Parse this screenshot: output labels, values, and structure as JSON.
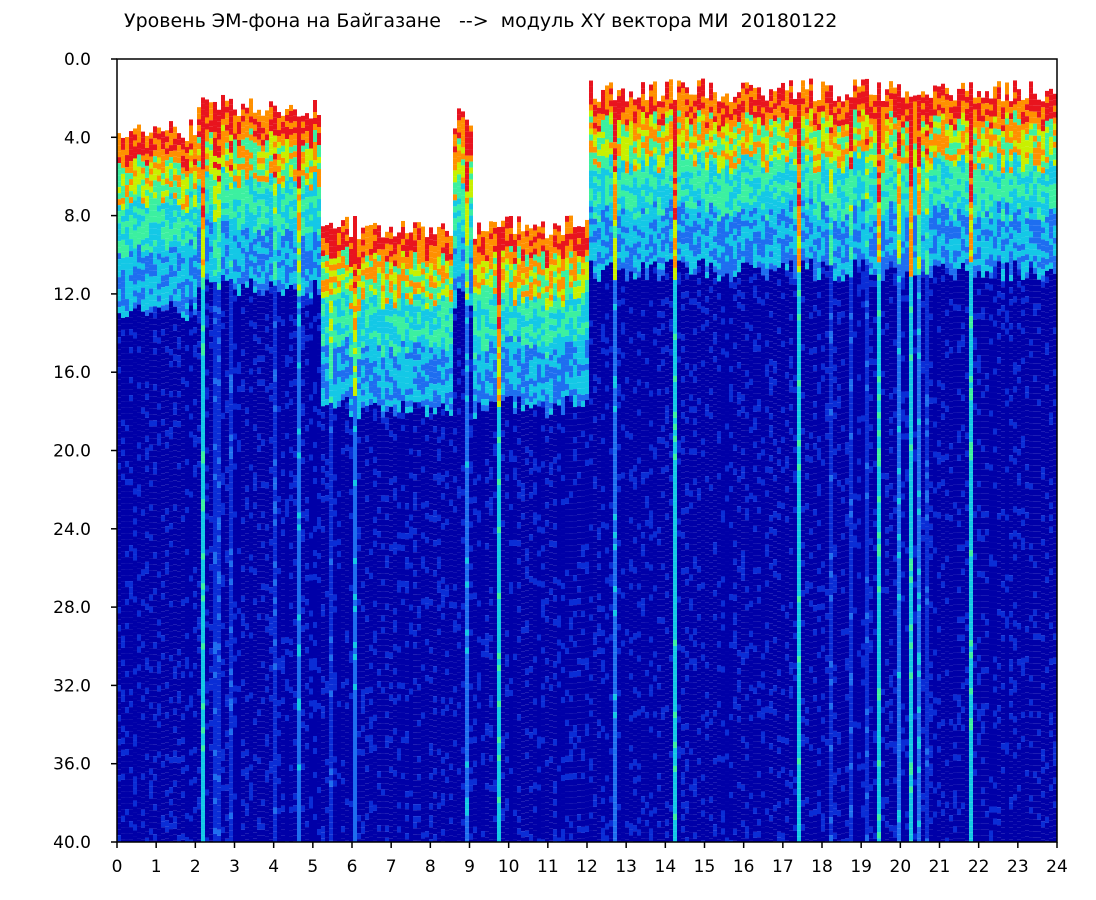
{
  "chart_data": {
    "type": "heatmap",
    "title": "Уровень ЭМ-фона на Байгазане   -->  модуль XY вектора МИ  20180122",
    "xlabel": "",
    "ylabel": "",
    "xlim": [
      0,
      24
    ],
    "ylim": [
      0,
      40
    ],
    "y_inverted": true,
    "x_ticks": [
      "0",
      "1",
      "2",
      "3",
      "4",
      "5",
      "6",
      "7",
      "8",
      "9",
      "10",
      "11",
      "12",
      "13",
      "14",
      "15",
      "16",
      "17",
      "18",
      "19",
      "20",
      "21",
      "22",
      "23",
      "24"
    ],
    "y_ticks": [
      "0.0",
      "4.0",
      "8.0",
      "12.0",
      "16.0",
      "20.0",
      "24.0",
      "28.0",
      "32.0",
      "36.0",
      "40.0"
    ],
    "y_tick_values": [
      0,
      4,
      8,
      12,
      16,
      20,
      24,
      28,
      32,
      36,
      40
    ],
    "x_tick_values": [
      0,
      1,
      2,
      3,
      4,
      5,
      6,
      7,
      8,
      9,
      10,
      11,
      12,
      13,
      14,
      15,
      16,
      17,
      18,
      19,
      20,
      21,
      22,
      23,
      24
    ],
    "grid": false,
    "colormap": [
      "#0000a8",
      "#0a2dd6",
      "#1e6ef0",
      "#14c8e6",
      "#3cf0a0",
      "#c8f000",
      "#ff9000",
      "#e8141e"
    ],
    "background_color": "#ffffff",
    "regions": [
      {
        "x": [
          0,
          2
        ],
        "signal_top": 3.0
      },
      {
        "x": [
          2,
          3
        ],
        "signal_top": 1.5
      },
      {
        "x": [
          3,
          5.2
        ],
        "signal_top": 2.0
      },
      {
        "x": [
          5.2,
          8.5
        ],
        "signal_top": 8.0
      },
      {
        "x": [
          8.5,
          9.0
        ],
        "signal_top": 2.5
      },
      {
        "x": [
          9.0,
          12.0
        ],
        "signal_top": 8.0
      },
      {
        "x": [
          12.0,
          24.0
        ],
        "signal_top": 1.0
      }
    ]
  }
}
